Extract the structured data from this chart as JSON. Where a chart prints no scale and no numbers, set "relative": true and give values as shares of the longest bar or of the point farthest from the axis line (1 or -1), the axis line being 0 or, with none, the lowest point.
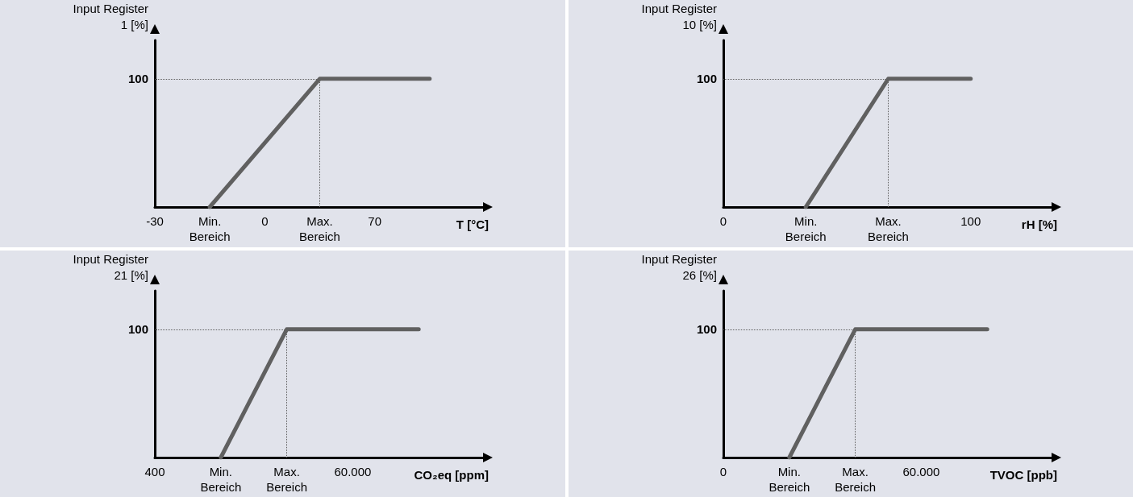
{
  "chart_data": [
    {
      "type": "line",
      "relative": true,
      "ylabel": "Input Register\n1 [%]",
      "xlabel": "T [°C]",
      "categories": [
        "-30",
        "Min.\nBereich",
        "0",
        "Max.\nBereich",
        "70",
        null,
        null
      ],
      "values": [
        null,
        0,
        null,
        1,
        1,
        1,
        null
      ],
      "color": "#606060",
      "grid": false,
      "marker": "none",
      "line_style": "solid",
      "ref_lines": [
        {
          "axis": "y",
          "value": 1,
          "label": "100",
          "line_style": "dotted",
          "color": "#606060"
        },
        {
          "axis": "x",
          "value": "Max.\nBereich",
          "line_style": "dotted",
          "color": "#606060"
        }
      ]
    },
    {
      "type": "line",
      "relative": true,
      "ylabel": "Input Register\n10 [%]",
      "xlabel": "rH [%]",
      "categories": [
        "0",
        "Min.\nBereich",
        "Max.\nBereich",
        "100",
        null
      ],
      "values": [
        null,
        0,
        1,
        1,
        null
      ],
      "color": "#606060",
      "grid": false,
      "marker": "none",
      "line_style": "solid",
      "ref_lines": [
        {
          "axis": "y",
          "value": 1,
          "label": "100",
          "line_style": "dotted",
          "color": "#606060"
        },
        {
          "axis": "x",
          "value": "Max.\nBereich",
          "line_style": "dotted",
          "color": "#606060"
        }
      ]
    },
    {
      "type": "line",
      "relative": true,
      "ylabel": "Input Register\n21 [%]",
      "xlabel": "CO₂eq [ppm]",
      "categories": [
        "400",
        "Min.\nBereich",
        "Max.\nBereich",
        "60.000",
        null,
        null
      ],
      "values": [
        null,
        0,
        1,
        1,
        1,
        null
      ],
      "color": "#606060",
      "grid": false,
      "marker": "none",
      "line_style": "solid",
      "ref_lines": [
        {
          "axis": "y",
          "value": 1,
          "label": "100",
          "line_style": "dotted",
          "color": "#606060"
        },
        {
          "axis": "x",
          "value": "Max.\nBereich",
          "line_style": "dotted",
          "color": "#606060"
        }
      ]
    },
    {
      "type": "line",
      "relative": true,
      "ylabel": "Input Register\n26 [%]",
      "xlabel": "TVOC [ppb]",
      "categories": [
        "0",
        "Min.\nBereich",
        "Max.\nBereich",
        "60.000",
        null,
        null
      ],
      "values": [
        null,
        0,
        1,
        1,
        1,
        null
      ],
      "color": "#606060",
      "grid": false,
      "marker": "none",
      "line_style": "solid",
      "ref_lines": [
        {
          "axis": "y",
          "value": 1,
          "label": "100",
          "line_style": "dotted",
          "color": "#606060"
        },
        {
          "axis": "x",
          "value": "Max.\nBereich",
          "line_style": "dotted",
          "color": "#606060"
        }
      ]
    }
  ]
}
